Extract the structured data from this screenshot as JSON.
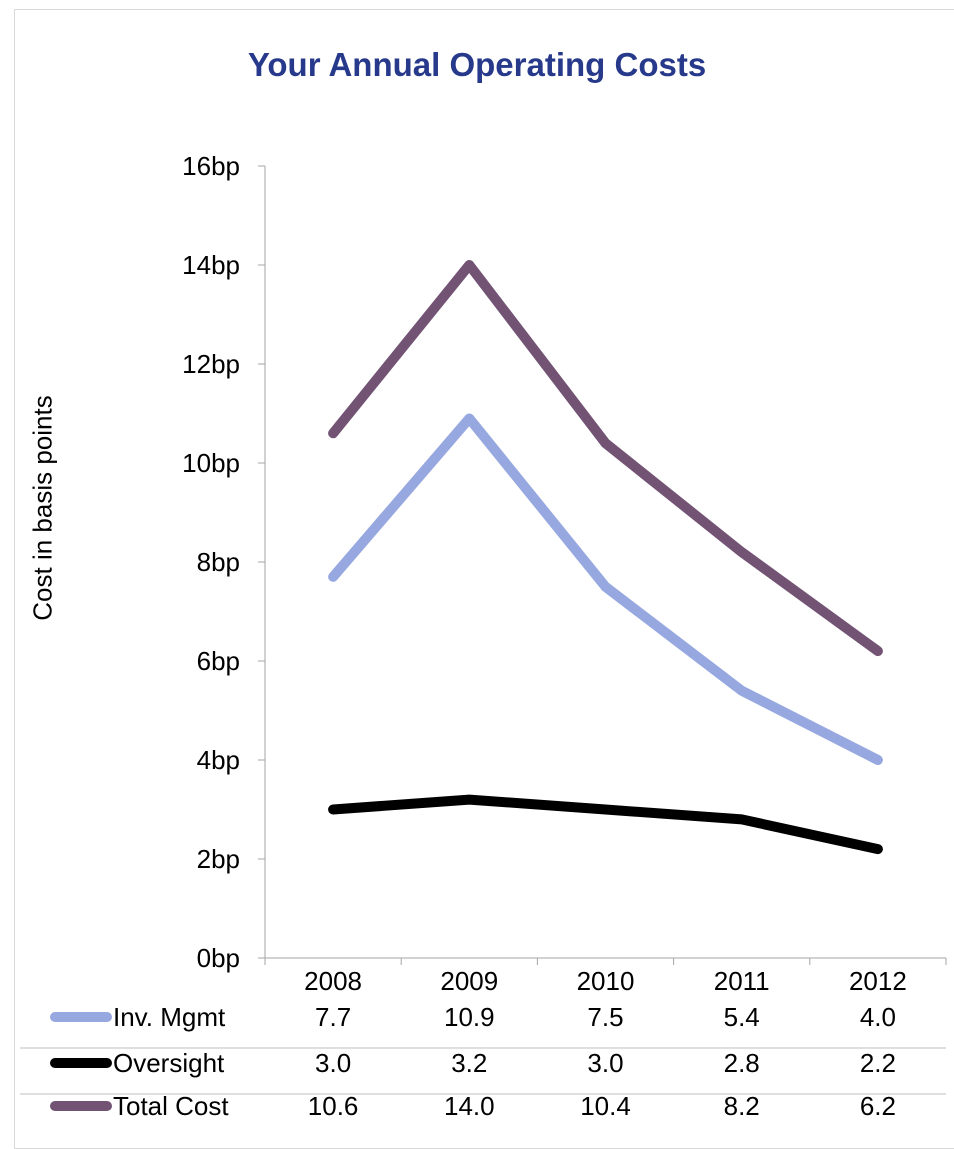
{
  "chart_data": {
    "type": "line",
    "title": "Your Annual Operating Costs",
    "ylabel": "Cost in basis points",
    "xlabel": "",
    "categories": [
      "2008",
      "2009",
      "2010",
      "2011",
      "2012"
    ],
    "ylim": [
      0,
      16
    ],
    "yticks": [
      "0bp",
      "2bp",
      "4bp",
      "6bp",
      "8bp",
      "10bp",
      "12bp",
      "14bp",
      "16bp"
    ],
    "grid": false,
    "legend": "data-table-below",
    "series": [
      {
        "name": "Inv. Mgmt",
        "color": "#97a8e0",
        "values": [
          7.7,
          10.9,
          7.5,
          5.4,
          4.0
        ],
        "labels": [
          "7.7",
          "10.9",
          "7.5",
          "5.4",
          "4.0"
        ]
      },
      {
        "name": "Oversight",
        "color": "#000000",
        "values": [
          3.0,
          3.2,
          3.0,
          2.8,
          2.2
        ],
        "labels": [
          "3.0",
          "3.2",
          "3.0",
          "2.8",
          "2.2"
        ]
      },
      {
        "name": "Total Cost",
        "color": "#725374",
        "values": [
          10.6,
          14.0,
          10.4,
          8.2,
          6.2
        ],
        "labels": [
          "10.6",
          "14.0",
          "10.4",
          "8.2",
          "6.2"
        ]
      }
    ]
  }
}
